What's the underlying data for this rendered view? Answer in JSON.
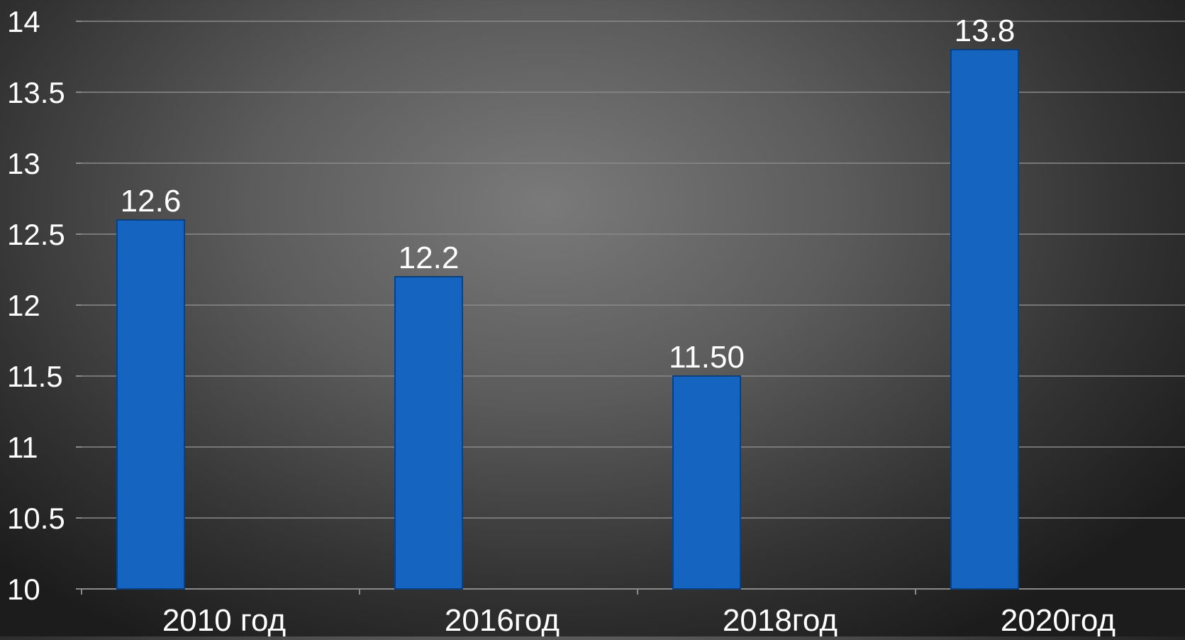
{
  "chart_data": {
    "type": "bar",
    "categories": [
      "2010 год",
      "2016год",
      "2018год",
      "2020год"
    ],
    "values": [
      12.6,
      12.2,
      11.5,
      13.8
    ],
    "value_labels": [
      "12.6",
      "12.2",
      "11.50",
      "13.8"
    ],
    "ylim": [
      10,
      14
    ],
    "yticks": [
      "10",
      "10.5",
      "11",
      "11.5",
      "12",
      "12.5",
      "13",
      "13.5",
      "14"
    ],
    "title": "",
    "xlabel": "",
    "ylabel": "",
    "grid": true,
    "legend": "none",
    "colors": {
      "bar": "#1565c0",
      "bar_stroke": "#0d3f7a",
      "grid": "#8a8a8a",
      "text": "#ffffff"
    }
  }
}
